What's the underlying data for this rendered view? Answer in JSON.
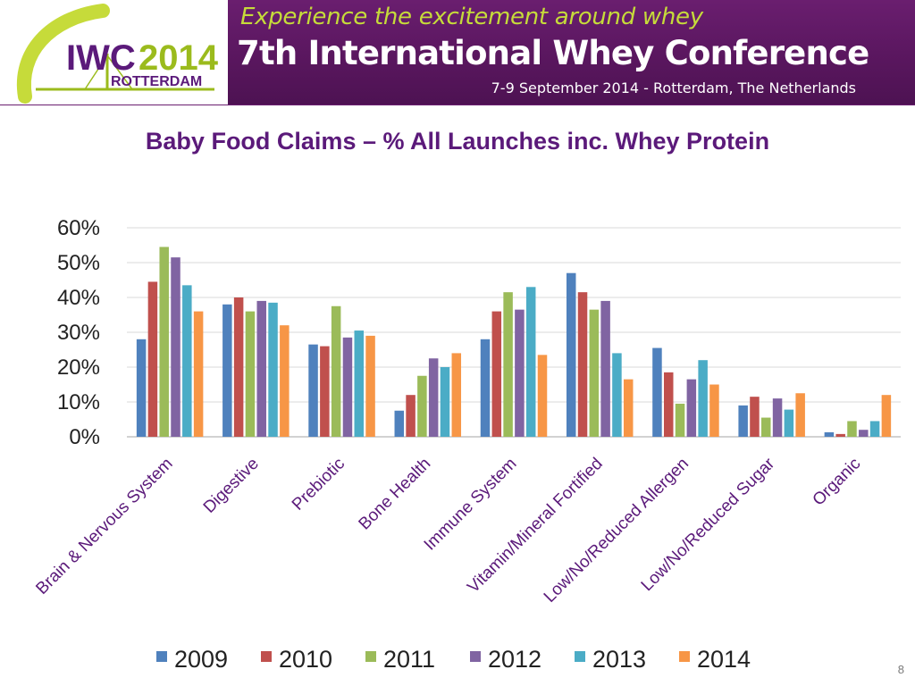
{
  "header": {
    "logo_text_iwc": "IWC",
    "logo_text_year": "2014",
    "logo_text_city": "ROTTERDAM",
    "tagline": "Experience the excitement around whey",
    "conference_name": "7th International Whey Conference",
    "date_location": "7-9 September 2014 - Rotterdam, The Netherlands",
    "colors": {
      "purple": "#5e1a63",
      "lime": "#c6db3a",
      "logo_purple": "#5b1a7a",
      "logo_green": "#9bbb1d"
    }
  },
  "page_number": "8",
  "chart_data": {
    "type": "bar",
    "title": "Baby Food Claims – % All Launches inc. Whey Protein",
    "xlabel": "",
    "ylabel": "",
    "ylim": [
      0,
      60
    ],
    "yticks": [
      "0%",
      "10%",
      "20%",
      "30%",
      "40%",
      "50%",
      "60%"
    ],
    "grid": true,
    "legend_position": "bottom",
    "categories": [
      "Brain & Nervous System",
      "Digestive",
      "Prebiotic",
      "Bone Health",
      "Immune System",
      "Vitamin/Mineral Fortified",
      "Low/No/Reduced Allergen",
      "Low/No/Reduced Sugar",
      "Organic"
    ],
    "series": [
      {
        "name": "2009",
        "color": "#4f81bd",
        "values": [
          28,
          38,
          26.5,
          7.5,
          28,
          47,
          25.5,
          9,
          1.3
        ]
      },
      {
        "name": "2010",
        "color": "#c0504d",
        "values": [
          44.5,
          40,
          26,
          12,
          36,
          41.5,
          18.5,
          11.5,
          0.8
        ]
      },
      {
        "name": "2011",
        "color": "#9bbb59",
        "values": [
          54.5,
          36,
          37.5,
          17.5,
          41.5,
          36.5,
          9.5,
          5.5,
          4.5
        ]
      },
      {
        "name": "2012",
        "color": "#8064a2",
        "values": [
          51.5,
          39,
          28.5,
          22.5,
          36.5,
          39,
          16.5,
          11,
          2
        ]
      },
      {
        "name": "2013",
        "color": "#4bacc6",
        "values": [
          43.5,
          38.5,
          30.5,
          20,
          43,
          24,
          22,
          7.8,
          4.5
        ]
      },
      {
        "name": "2014",
        "color": "#f79646",
        "values": [
          36,
          32,
          29,
          24,
          23.5,
          16.5,
          15,
          12.5,
          12
        ]
      }
    ]
  }
}
